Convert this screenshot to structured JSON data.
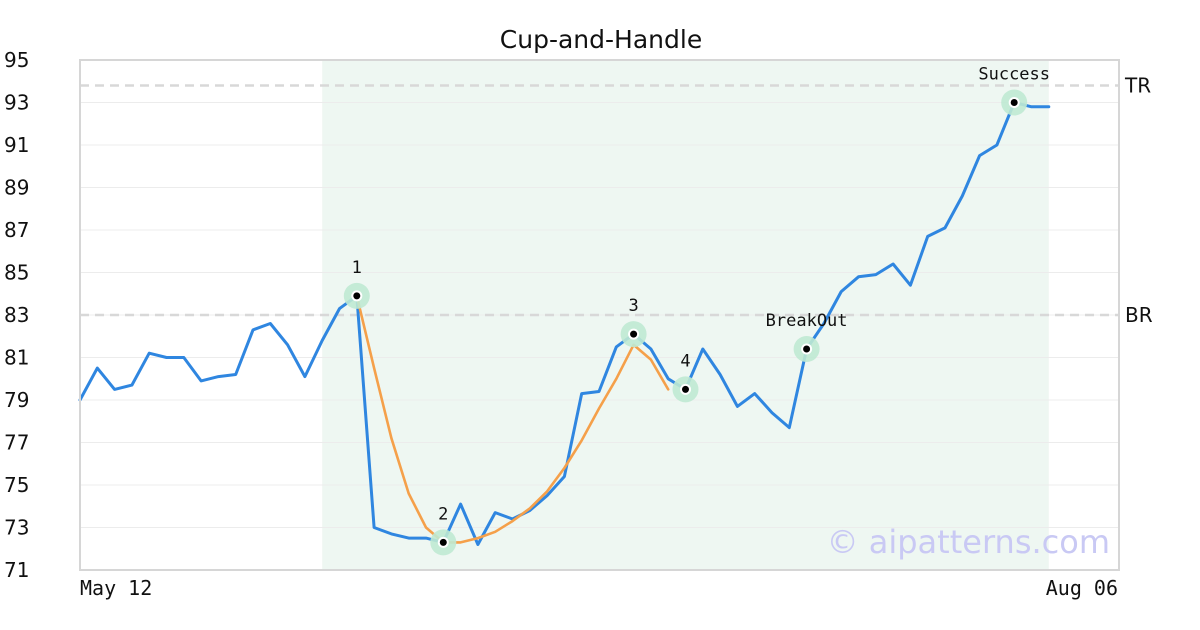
{
  "chart_data": {
    "type": "line",
    "title": "Cup-and-Handle",
    "ylim": [
      71,
      95
    ],
    "yticks": [
      71,
      73,
      75,
      77,
      79,
      81,
      83,
      85,
      87,
      89,
      91,
      93,
      95
    ],
    "x_labels": {
      "start": "May 12",
      "end": "Aug 06"
    },
    "grid": true,
    "highlight_region": {
      "from_index": 14,
      "to_index": 56
    },
    "levels": [
      {
        "label": "TR",
        "value": 93.8
      },
      {
        "label": "BR",
        "value": 83.0
      }
    ],
    "series": [
      {
        "color": "#2f86e0",
        "values": [
          79.0,
          80.5,
          79.5,
          79.7,
          81.2,
          81.0,
          81.0,
          79.9,
          80.1,
          80.2,
          82.3,
          82.6,
          81.6,
          80.1,
          81.8,
          83.3,
          83.9,
          73.0,
          72.7,
          72.5,
          72.5,
          72.3,
          74.1,
          72.2,
          73.7,
          73.4,
          73.8,
          74.5,
          75.4,
          79.3,
          79.4,
          81.5,
          82.1,
          81.4,
          80.0,
          79.5,
          81.4,
          80.2,
          78.7,
          79.3,
          78.4,
          77.7,
          81.4,
          82.6,
          84.1,
          84.8,
          84.9,
          85.4,
          84.4,
          86.7,
          87.1,
          88.6,
          90.5,
          91.0,
          93.0,
          92.8,
          92.8
        ]
      },
      {
        "color": "#f5a04a",
        "start_index": 16,
        "values": [
          83.9,
          80.5,
          77.2,
          74.6,
          73.0,
          72.3,
          72.3,
          72.5,
          72.8,
          73.3,
          73.9,
          74.7,
          75.8,
          77.1,
          78.6,
          80.0,
          81.6,
          80.9,
          79.5
        ]
      }
    ],
    "annotations": [
      {
        "label": "1",
        "index": 16,
        "value": 83.9
      },
      {
        "label": "2",
        "index": 21,
        "value": 72.3
      },
      {
        "label": "3",
        "index": 32,
        "value": 82.1
      },
      {
        "label": "4",
        "index": 35,
        "value": 79.5
      },
      {
        "label": "BreakOut",
        "index": 42,
        "value": 81.4
      },
      {
        "label": "Success",
        "index": 54,
        "value": 93.0
      }
    ],
    "watermark": "© aipatterns.com"
  }
}
